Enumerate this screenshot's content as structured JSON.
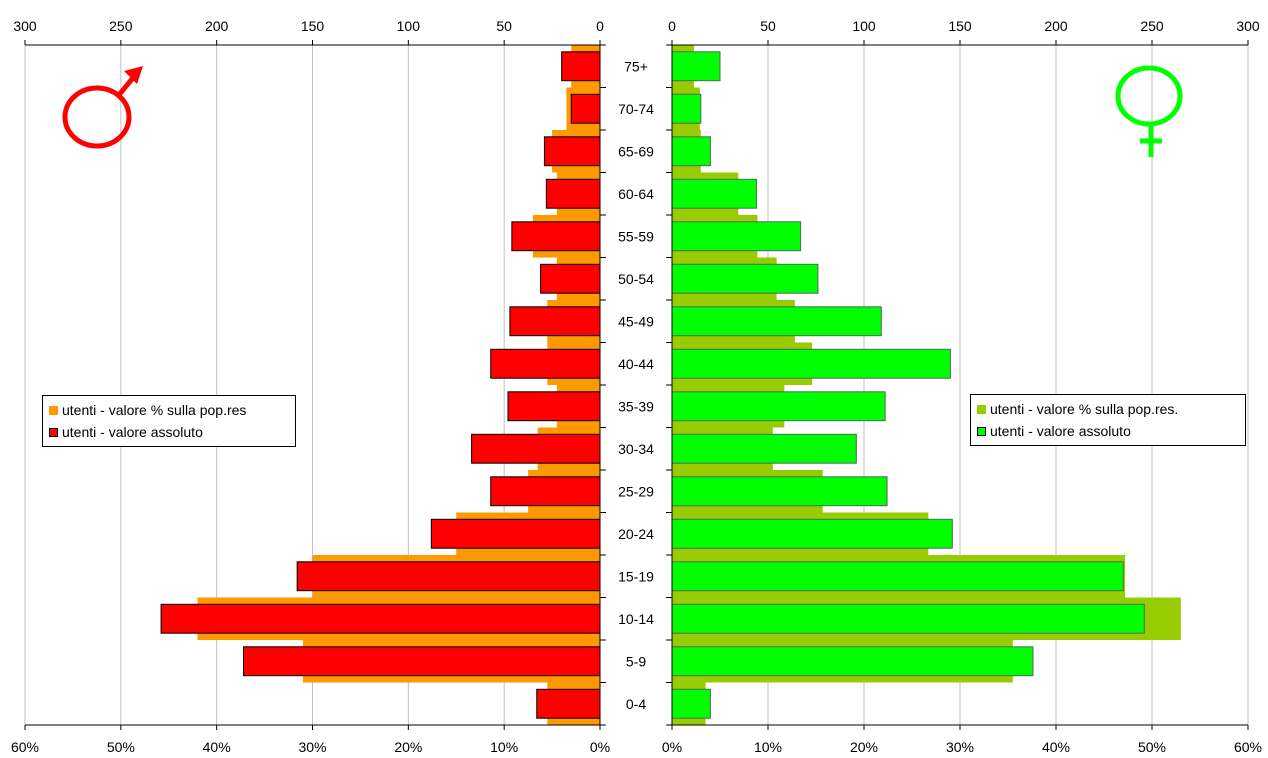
{
  "chart_data": {
    "type": "bar",
    "layout": "population-pyramid",
    "categories": [
      "0-4",
      "5-9",
      "10-14",
      "15-19",
      "20-24",
      "25-29",
      "30-34",
      "35-39",
      "40-44",
      "45-49",
      "50-54",
      "55-59",
      "60-64",
      "65-69",
      "70-74",
      "75+"
    ],
    "male": {
      "series": [
        {
          "name": "utenti - valore % sulla pop.res",
          "axis": "percent",
          "color": "#ff9900",
          "values": [
            5.5,
            31,
            42,
            30,
            15,
            7.5,
            6.5,
            4.5,
            5.5,
            5.5,
            4.5,
            7,
            4.5,
            5,
            3.5,
            3
          ]
        },
        {
          "name": "utenti - valore assoluto",
          "axis": "absolute",
          "color": "#ff0000",
          "values": [
            33,
            186,
            229,
            158,
            88,
            57,
            67,
            48,
            57,
            47,
            31,
            46,
            28,
            29,
            15,
            20
          ]
        }
      ],
      "absolute_axis": {
        "ticks": [
          "300",
          "250",
          "200",
          "150",
          "100",
          "50",
          "0"
        ],
        "range": [
          0,
          300
        ]
      },
      "percent_axis": {
        "ticks": [
          "60%",
          "50%",
          "40%",
          "30%",
          "20%",
          "10%",
          "0%"
        ],
        "range": [
          0,
          60
        ]
      }
    },
    "female": {
      "series": [
        {
          "name": "utenti - valore % sulla pop.res.",
          "axis": "percent",
          "color": "#99cc00",
          "values": [
            3.5,
            35.5,
            53,
            47.2,
            26.7,
            15.7,
            10.5,
            11.7,
            14.6,
            12.8,
            10.9,
            8.9,
            6.9,
            3,
            2.9,
            2.3
          ]
        },
        {
          "name": "utenti - valore assoluto",
          "axis": "absolute",
          "color": "#00ff00",
          "values": [
            20,
            188,
            246,
            235,
            146,
            112,
            96,
            111,
            145,
            109,
            76,
            67,
            44,
            20,
            15,
            25
          ]
        }
      ],
      "absolute_axis": {
        "ticks": [
          "0",
          "50",
          "100",
          "150",
          "200",
          "250",
          "300"
        ],
        "range": [
          0,
          300
        ]
      },
      "percent_axis": {
        "ticks": [
          "0%",
          "10%",
          "20%",
          "30%",
          "40%",
          "50%",
          "60%"
        ],
        "range": [
          0,
          60
        ]
      }
    },
    "grid": true,
    "legend_placement": "middle-left and middle-right",
    "symbols": {
      "male": "male-symbol",
      "female": "female-symbol"
    }
  },
  "legends": {
    "male": {
      "pct_label": "utenti - valore % sulla pop.res",
      "abs_label": "utenti - valore assoluto"
    },
    "female": {
      "pct_label": "utenti - valore % sulla pop.res.",
      "abs_label": "utenti - valore assoluto"
    }
  }
}
